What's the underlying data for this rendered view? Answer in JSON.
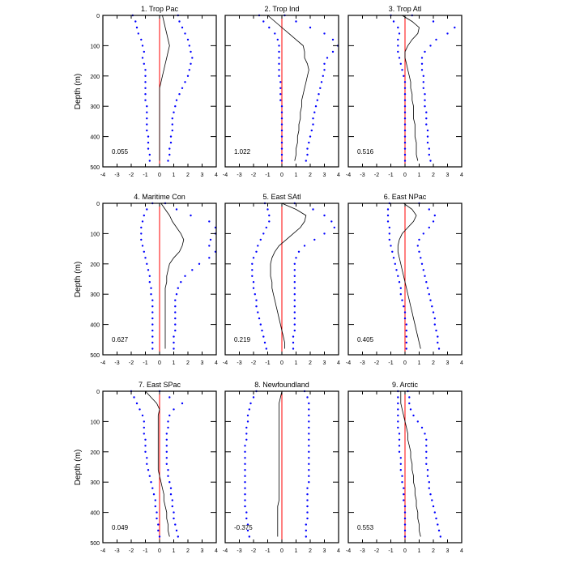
{
  "ylabel": "Depth (m)",
  "x_ticks": [
    "-4",
    "-3",
    "-2",
    "-1",
    "0",
    "1",
    "2",
    "3",
    "4"
  ],
  "y_ticks": [
    "0",
    "100",
    "200",
    "300",
    "400",
    "500"
  ],
  "colors": {
    "mean_line": "#000000",
    "bound_dots": "#0000ff",
    "zero_line": "#ff0000"
  },
  "chart_data": [
    {
      "type": "line",
      "title": "1. Trop Pac",
      "value_label": "0.055",
      "xlim": [
        -4,
        4
      ],
      "ylim": [
        500,
        0
      ],
      "depth_step": 20,
      "mean": [
        0.2,
        0.3,
        0.4,
        0.5,
        0.6,
        0.7,
        0.6,
        0.5,
        0.4,
        0.3,
        0.2,
        0.1,
        0.0,
        0.0,
        0.0,
        0.0,
        0.0,
        0.0,
        0.0,
        0.0,
        0.0,
        0.0,
        0.0,
        0.0,
        0.0
      ],
      "lower": [
        -1.9,
        -1.7,
        -1.6,
        -1.5,
        -1.3,
        -1.2,
        -1.1,
        -1.2,
        -1.1,
        -1.0,
        -1.0,
        -1.0,
        -1.0,
        -1.0,
        -1.0,
        -0.9,
        -0.9,
        -0.9,
        -0.9,
        -0.9,
        -0.8,
        -0.8,
        -0.8,
        -0.7,
        -0.7
      ],
      "upper": [
        1.3,
        1.4,
        1.6,
        1.8,
        2.0,
        2.1,
        2.2,
        2.3,
        2.2,
        2.1,
        2.0,
        1.8,
        1.6,
        1.4,
        1.2,
        1.1,
        1.0,
        0.9,
        0.9,
        0.9,
        0.8,
        0.8,
        0.7,
        0.7,
        0.6
      ]
    },
    {
      "type": "line",
      "title": "2. Trop Ind",
      "value_label": "1.022",
      "xlim": [
        -4,
        4
      ],
      "ylim": [
        500,
        0
      ],
      "depth_step": 20,
      "mean": [
        -1.0,
        -0.5,
        0.0,
        0.5,
        1.0,
        1.5,
        1.6,
        1.6,
        1.8,
        1.9,
        1.8,
        1.7,
        1.6,
        1.5,
        1.4,
        1.4,
        1.3,
        1.3,
        1.2,
        1.2,
        1.1,
        1.1,
        1.0,
        1.0,
        0.9
      ],
      "lower": [
        -1.6,
        -1.3,
        -0.9,
        -0.5,
        -0.3,
        -0.2,
        -0.2,
        -0.2,
        -0.2,
        -0.2,
        -0.2,
        -0.1,
        -0.1,
        -0.1,
        -0.1,
        0.0,
        0.0,
        0.0,
        0.0,
        0.0,
        0.0,
        0.0,
        0.0,
        0.0,
        0.0
      ],
      "upper": [
        0.2,
        1.0,
        2.0,
        3.0,
        3.6,
        4.0,
        3.6,
        3.2,
        3.0,
        3.0,
        2.9,
        2.8,
        2.7,
        2.6,
        2.5,
        2.4,
        2.3,
        2.2,
        2.2,
        2.1,
        2.0,
        1.9,
        1.8,
        1.8,
        1.7
      ]
    },
    {
      "type": "line",
      "title": "3. Trop Atl",
      "value_label": "0.516",
      "xlim": [
        -4,
        4
      ],
      "ylim": [
        500,
        0
      ],
      "depth_step": 20,
      "mean": [
        -0.2,
        0.5,
        1.0,
        0.9,
        0.5,
        0.2,
        0.0,
        0.0,
        0.1,
        0.2,
        0.3,
        0.4,
        0.4,
        0.5,
        0.5,
        0.6,
        0.6,
        0.6,
        0.7,
        0.7,
        0.7,
        0.8,
        0.8,
        0.8,
        0.9
      ],
      "lower": [
        -1.0,
        -0.8,
        -0.5,
        -0.4,
        -0.5,
        -0.5,
        -0.5,
        -0.4,
        -0.3,
        -0.2,
        -0.1,
        0.0,
        0.0,
        0.0,
        0.0,
        0.0,
        0.0,
        0.0,
        0.0,
        0.0,
        0.0,
        0.0,
        0.0,
        0.0,
        0.0
      ],
      "upper": [
        0.5,
        2.0,
        3.5,
        3.0,
        2.2,
        1.8,
        1.4,
        1.2,
        1.2,
        1.2,
        1.3,
        1.3,
        1.3,
        1.4,
        1.4,
        1.4,
        1.5,
        1.5,
        1.5,
        1.6,
        1.6,
        1.6,
        1.7,
        1.7,
        1.8
      ]
    },
    {
      "type": "line",
      "title": "4. Maritime Con",
      "value_label": "0.627",
      "xlim": [
        -4,
        4
      ],
      "ylim": [
        500,
        0
      ],
      "depth_step": 20,
      "mean": [
        0.1,
        0.4,
        0.7,
        0.9,
        1.2,
        1.5,
        1.7,
        1.6,
        1.4,
        1.0,
        0.7,
        0.6,
        0.5,
        0.5,
        0.4,
        0.4,
        0.4,
        0.4,
        0.4,
        0.4,
        0.4,
        0.4,
        0.4,
        0.4,
        0.4
      ],
      "lower": [
        -0.5,
        -0.9,
        -1.1,
        -1.2,
        -1.3,
        -1.3,
        -1.3,
        -1.2,
        -1.1,
        -1.0,
        -0.9,
        -0.8,
        -0.7,
        -0.7,
        -0.6,
        -0.6,
        -0.5,
        -0.5,
        -0.5,
        -0.5,
        -0.5,
        -0.5,
        -0.5,
        -0.5,
        -0.5
      ],
      "upper": [
        0.4,
        1.2,
        2.2,
        3.5,
        4.0,
        4.0,
        3.6,
        3.5,
        4.0,
        3.5,
        2.8,
        2.3,
        1.8,
        1.5,
        1.3,
        1.2,
        1.1,
        1.1,
        1.1,
        1.1,
        1.1,
        1.1,
        1.0,
        1.0,
        1.0
      ]
    },
    {
      "type": "line",
      "title": "5. East SAtl",
      "value_label": "0.219",
      "xlim": [
        -4,
        4
      ],
      "ylim": [
        500,
        0
      ],
      "depth_step": 20,
      "mean": [
        0.0,
        1.0,
        1.7,
        1.6,
        1.3,
        0.8,
        0.3,
        -0.2,
        -0.5,
        -0.7,
        -0.8,
        -0.8,
        -0.8,
        -0.7,
        -0.7,
        -0.6,
        -0.5,
        -0.4,
        -0.3,
        -0.2,
        -0.1,
        0.0,
        0.1,
        0.2,
        0.2
      ],
      "lower": [
        -1.2,
        -1.0,
        -0.9,
        -0.9,
        -1.1,
        -1.3,
        -1.5,
        -1.7,
        -1.8,
        -2.0,
        -2.1,
        -2.1,
        -2.1,
        -2.0,
        -2.0,
        -1.9,
        -1.8,
        -1.8,
        -1.7,
        -1.6,
        -1.5,
        -1.4,
        -1.3,
        -1.2,
        -1.1
      ],
      "upper": [
        0.9,
        2.2,
        3.0,
        3.5,
        3.7,
        3.0,
        2.3,
        1.6,
        1.2,
        1.0,
        0.9,
        0.9,
        0.9,
        0.9,
        0.9,
        0.9,
        0.9,
        0.9,
        0.9,
        0.9,
        0.9,
        0.9,
        0.8,
        0.8,
        0.8
      ]
    },
    {
      "type": "line",
      "title": "6. East NPac",
      "value_label": "0.405",
      "xlim": [
        -4,
        4
      ],
      "ylim": [
        500,
        0
      ],
      "depth_step": 20,
      "mean": [
        -0.1,
        0.5,
        0.8,
        0.6,
        0.2,
        -0.2,
        -0.4,
        -0.5,
        -0.5,
        -0.4,
        -0.3,
        -0.2,
        -0.1,
        0.0,
        0.1,
        0.2,
        0.3,
        0.4,
        0.5,
        0.6,
        0.7,
        0.8,
        0.9,
        1.0,
        1.1
      ],
      "lower": [
        -1.1,
        -1.2,
        -1.2,
        -1.2,
        -1.1,
        -1.1,
        -1.1,
        -1.0,
        -0.9,
        -0.8,
        -0.7,
        -0.6,
        -0.5,
        -0.4,
        -0.3,
        -0.3,
        -0.2,
        -0.1,
        0.0,
        0.0,
        0.1,
        0.1,
        0.1,
        0.1,
        0.1
      ],
      "upper": [
        1.0,
        1.7,
        2.1,
        2.0,
        1.7,
        1.3,
        1.0,
        0.9,
        1.0,
        1.1,
        1.2,
        1.3,
        1.4,
        1.5,
        1.6,
        1.7,
        1.8,
        1.9,
        2.0,
        2.1,
        2.1,
        2.2,
        2.3,
        2.3,
        2.4
      ]
    },
    {
      "type": "line",
      "title": "7. East SPac",
      "value_label": "0.049",
      "xlim": [
        -4,
        4
      ],
      "ylim": [
        500,
        0
      ],
      "depth_step": 20,
      "mean": [
        -1.0,
        -0.6,
        -0.2,
        0.0,
        -0.1,
        -0.1,
        -0.1,
        -0.1,
        -0.1,
        -0.1,
        -0.1,
        -0.1,
        -0.1,
        -0.1,
        0.0,
        0.1,
        0.2,
        0.3,
        0.3,
        0.4,
        0.5,
        0.5,
        0.6,
        0.6,
        0.7
      ],
      "lower": [
        -2.0,
        -1.8,
        -1.6,
        -1.4,
        -1.2,
        -1.1,
        -1.1,
        -1.1,
        -1.0,
        -1.0,
        -1.0,
        -0.9,
        -0.9,
        -0.8,
        -0.7,
        -0.6,
        -0.5,
        -0.4,
        -0.3,
        -0.3,
        -0.2,
        -0.2,
        -0.1,
        -0.1,
        0.0
      ],
      "upper": [
        0.0,
        0.7,
        1.6,
        1.0,
        0.7,
        0.6,
        0.6,
        0.5,
        0.5,
        0.5,
        0.5,
        0.5,
        0.5,
        0.6,
        0.6,
        0.7,
        0.8,
        0.8,
        0.9,
        0.9,
        1.0,
        1.0,
        1.1,
        1.2,
        1.3
      ]
    },
    {
      "type": "line",
      "title": "8. Newfoundland",
      "value_label": "-0.375",
      "xlim": [
        -4,
        4
      ],
      "ylim": [
        500,
        0
      ],
      "depth_step": 20,
      "mean": [
        0.0,
        -0.1,
        -0.2,
        -0.2,
        -0.2,
        -0.2,
        -0.2,
        -0.2,
        -0.2,
        -0.2,
        -0.2,
        -0.2,
        -0.2,
        -0.2,
        -0.2,
        -0.2,
        -0.2,
        -0.2,
        -0.2,
        -0.3,
        -0.3,
        -0.3,
        -0.3,
        -0.3,
        -0.3
      ],
      "lower": [
        -1.8,
        -2.0,
        -2.2,
        -2.3,
        -2.4,
        -2.4,
        -2.5,
        -2.5,
        -2.5,
        -2.6,
        -2.6,
        -2.6,
        -2.6,
        -2.6,
        -2.6,
        -2.6,
        -2.6,
        -2.6,
        -2.6,
        -2.6,
        -2.5,
        -2.5,
        -2.4,
        -2.4,
        -2.3
      ],
      "upper": [
        1.6,
        1.8,
        1.9,
        1.9,
        1.9,
        1.9,
        1.9,
        1.9,
        1.9,
        1.9,
        1.9,
        1.9,
        1.9,
        1.9,
        1.9,
        1.9,
        1.8,
        1.8,
        1.8,
        1.8,
        1.8,
        1.8,
        1.7,
        1.7,
        1.7
      ]
    },
    {
      "type": "line",
      "title": "9. Arctic",
      "value_label": "0.553",
      "xlim": [
        -4,
        4
      ],
      "ylim": [
        500,
        0
      ],
      "depth_step": 20,
      "mean": [
        -0.3,
        -0.3,
        -0.3,
        -0.2,
        -0.1,
        0.0,
        0.1,
        0.2,
        0.2,
        0.3,
        0.4,
        0.4,
        0.5,
        0.5,
        0.6,
        0.6,
        0.7,
        0.7,
        0.8,
        0.8,
        0.9,
        0.9,
        1.0,
        1.0,
        1.1
      ],
      "lower": [
        -0.5,
        -0.5,
        -0.5,
        -0.5,
        -0.5,
        -0.5,
        -0.5,
        -0.4,
        -0.4,
        -0.4,
        -0.4,
        -0.3,
        -0.3,
        -0.3,
        -0.2,
        -0.2,
        -0.1,
        -0.1,
        -0.1,
        0.0,
        0.0,
        0.0,
        0.0,
        0.0,
        0.0
      ],
      "upper": [
        0.2,
        0.3,
        0.3,
        0.4,
        0.6,
        0.9,
        1.2,
        1.4,
        1.5,
        1.5,
        1.5,
        1.5,
        1.5,
        1.6,
        1.6,
        1.7,
        1.7,
        1.8,
        1.9,
        2.0,
        2.1,
        2.2,
        2.3,
        2.4,
        2.5
      ]
    }
  ]
}
